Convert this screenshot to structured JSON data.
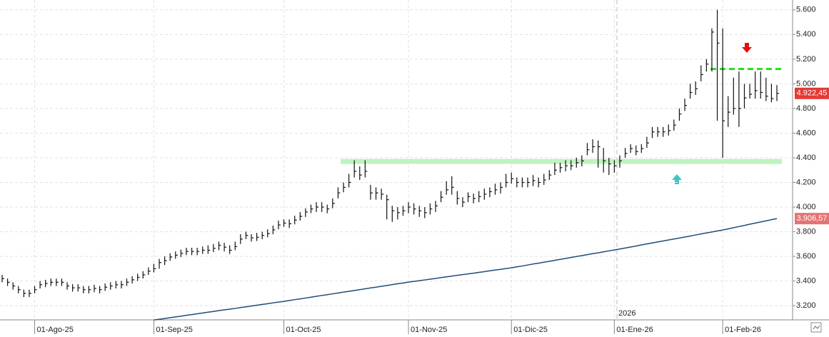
{
  "chart_data": {
    "type": "hlc",
    "categories": [
      null,
      null,
      null,
      null,
      null,
      null,
      "01-Ago-25",
      null,
      null,
      null,
      null,
      null,
      null,
      null,
      null,
      null,
      null,
      null,
      null,
      null,
      null,
      null,
      null,
      null,
      null,
      null,
      null,
      null,
      "01-Sep-25",
      null,
      null,
      null,
      null,
      null,
      null,
      null,
      null,
      null,
      null,
      null,
      null,
      null,
      null,
      null,
      null,
      null,
      null,
      null,
      null,
      null,
      null,
      null,
      "01-Oct-25",
      null,
      null,
      null,
      null,
      null,
      null,
      null,
      null,
      null,
      null,
      null,
      null,
      null,
      null,
      null,
      null,
      null,
      null,
      null,
      null,
      null,
      null,
      "01-Nov-25",
      null,
      null,
      null,
      null,
      null,
      null,
      null,
      null,
      null,
      null,
      null,
      null,
      null,
      null,
      null,
      null,
      null,
      null,
      "01-Dic-25",
      null,
      null,
      null,
      null,
      null,
      null,
      null,
      null,
      null,
      null,
      null,
      null,
      null,
      null,
      null,
      null,
      null,
      null,
      "01-Ene-26",
      null,
      null,
      null,
      null,
      null,
      null,
      null,
      null,
      null,
      null,
      null,
      null,
      null,
      null,
      null,
      null,
      null,
      null,
      null,
      "01-Feb-26",
      null,
      null,
      null,
      null,
      null,
      null,
      null,
      null,
      null,
      null
    ],
    "high": [
      3450,
      3420,
      3390,
      3360,
      3330,
      3330,
      3360,
      3400,
      3410,
      3420,
      3420,
      3420,
      3390,
      3375,
      3375,
      3360,
      3360,
      3370,
      3360,
      3380,
      3390,
      3400,
      3400,
      3420,
      3440,
      3460,
      3480,
      3510,
      3540,
      3580,
      3600,
      3625,
      3640,
      3655,
      3670,
      3670,
      3670,
      3680,
      3690,
      3700,
      3720,
      3710,
      3690,
      3720,
      3780,
      3800,
      3780,
      3790,
      3800,
      3820,
      3850,
      3890,
      3900,
      3900,
      3930,
      3960,
      3990,
      4020,
      4040,
      4040,
      4020,
      4070,
      4160,
      4200,
      4270,
      4380,
      4330,
      4380,
      4180,
      4160,
      4150,
      4100,
      4010,
      4000,
      4010,
      4040,
      4030,
      4010,
      4000,
      4030,
      4050,
      4130,
      4210,
      4250,
      4130,
      4080,
      4120,
      4110,
      4130,
      4150,
      4160,
      4190,
      4200,
      4270,
      4280,
      4240,
      4240,
      4240,
      4260,
      4240,
      4270,
      4300,
      4360,
      4360,
      4380,
      4380,
      4400,
      4420,
      4520,
      4550,
      4540,
      4480,
      4400,
      4380,
      4420,
      4480,
      4510,
      4500,
      4510,
      4570,
      4650,
      4650,
      4650,
      4670,
      4710,
      4800,
      4880,
      5000,
      5020,
      5150,
      5200,
      5450,
      5600,
      5450,
      4900,
      5050,
      5100,
      5000,
      5000,
      5100,
      5100,
      5050,
      5000,
      4990
    ],
    "low": [
      3390,
      3360,
      3330,
      3300,
      3270,
      3270,
      3300,
      3340,
      3350,
      3360,
      3360,
      3360,
      3330,
      3315,
      3315,
      3300,
      3300,
      3310,
      3300,
      3320,
      3330,
      3340,
      3340,
      3360,
      3380,
      3400,
      3420,
      3450,
      3470,
      3500,
      3530,
      3565,
      3580,
      3595,
      3610,
      3610,
      3610,
      3620,
      3620,
      3635,
      3650,
      3640,
      3620,
      3650,
      3700,
      3740,
      3720,
      3725,
      3740,
      3755,
      3780,
      3820,
      3840,
      3830,
      3860,
      3890,
      3920,
      3950,
      3960,
      3960,
      3950,
      3990,
      4070,
      4120,
      4160,
      4240,
      4220,
      4240,
      4060,
      4060,
      4060,
      3900,
      3880,
      3900,
      3930,
      3950,
      3940,
      3920,
      3910,
      3940,
      3960,
      4040,
      4100,
      4100,
      4020,
      4000,
      4040,
      4030,
      4040,
      4060,
      4080,
      4100,
      4110,
      4160,
      4190,
      4160,
      4160,
      4160,
      4170,
      4160,
      4180,
      4220,
      4260,
      4280,
      4290,
      4300,
      4320,
      4330,
      4420,
      4440,
      4320,
      4280,
      4260,
      4280,
      4320,
      4400,
      4440,
      4420,
      4440,
      4480,
      4560,
      4570,
      4570,
      4580,
      4620,
      4700,
      4780,
      4880,
      4910,
      5020,
      5100,
      5100,
      4700,
      4400,
      4650,
      4750,
      4650,
      4800,
      4880,
      4880,
      4880,
      4860,
      4850,
      4860
    ],
    "close": [
      3420,
      3390,
      3360,
      3330,
      3300,
      3300,
      3330,
      3370,
      3380,
      3390,
      3390,
      3390,
      3360,
      3345,
      3345,
      3330,
      3330,
      3340,
      3330,
      3350,
      3360,
      3370,
      3370,
      3390,
      3410,
      3430,
      3450,
      3480,
      3500,
      3550,
      3565,
      3595,
      3610,
      3625,
      3640,
      3640,
      3640,
      3650,
      3650,
      3665,
      3690,
      3675,
      3650,
      3680,
      3740,
      3770,
      3750,
      3755,
      3770,
      3785,
      3815,
      3855,
      3870,
      3865,
      3895,
      3925,
      3960,
      3985,
      4000,
      4000,
      3985,
      4030,
      4115,
      4160,
      4200,
      4290,
      4260,
      4290,
      4115,
      4115,
      4105,
      4060,
      3970,
      3955,
      3970,
      4000,
      3985,
      3970,
      3955,
      3985,
      4010,
      4080,
      4140,
      4160,
      4070,
      4040,
      4085,
      4070,
      4085,
      4105,
      4125,
      4140,
      4160,
      4200,
      4230,
      4200,
      4200,
      4200,
      4215,
      4200,
      4220,
      4260,
      4300,
      4320,
      4335,
      4335,
      4360,
      4375,
      4465,
      4490,
      4490,
      4375,
      4350,
      4335,
      4375,
      4435,
      4475,
      4450,
      4475,
      4520,
      4610,
      4610,
      4610,
      4620,
      4665,
      4755,
      4825,
      4930,
      4960,
      5075,
      5160,
      5420,
      5330,
      4700,
      4770,
      4800,
      4800,
      4885,
      4915,
      4945,
      4930,
      4900,
      4880,
      4922.45
    ],
    "bar_color": "#111111",
    "ma": {
      "color": "#1f4e79",
      "values": [
        null,
        null,
        null,
        null,
        null,
        null,
        null,
        null,
        null,
        null,
        null,
        null,
        null,
        null,
        null,
        null,
        null,
        null,
        null,
        null,
        null,
        null,
        null,
        null,
        null,
        null,
        null,
        null,
        3084,
        3090,
        3096,
        3103,
        3109,
        3115,
        3122,
        3128,
        3134,
        3141,
        3147,
        3153,
        3160,
        3166,
        3172,
        3178,
        3185,
        3191,
        3197,
        3204,
        3210,
        3216,
        3223,
        3229,
        3235,
        3242,
        3249,
        3255,
        3262,
        3269,
        3276,
        3283,
        3289,
        3296,
        3303,
        3310,
        3317,
        3323,
        3330,
        3337,
        3344,
        3350,
        3357,
        3364,
        3371,
        3378,
        3384,
        3391,
        3397,
        3403,
        3409,
        3415,
        3421,
        3428,
        3434,
        3440,
        3446,
        3452,
        3458,
        3464,
        3470,
        3476,
        3483,
        3489,
        3495,
        3501,
        3507,
        3515,
        3522,
        3530,
        3538,
        3545,
        3553,
        3560,
        3568,
        3576,
        3583,
        3591,
        3599,
        3606,
        3614,
        3622,
        3629,
        3637,
        3645,
        3652,
        3660,
        3668,
        3676,
        3684,
        3693,
        3701,
        3709,
        3717,
        3725,
        3733,
        3741,
        3749,
        3757,
        3765,
        3774,
        3782,
        3790,
        3798,
        3806,
        3814,
        3823,
        3833,
        3842,
        3851,
        3861,
        3870,
        3879,
        3888,
        3898,
        3906.57
      ]
    },
    "levels": [
      {
        "value": 4370,
        "color": "#bff2bf"
      },
      {
        "value": 5120,
        "color": "#22dd22"
      }
    ],
    "last_price": {
      "value": 4922.45,
      "label": "4.922,45",
      "color": "#e53935"
    },
    "ma_price": {
      "value": 3906.57,
      "label": "3.906,57",
      "color": "#e57373"
    },
    "year_marker": "2026",
    "ylim": [
      3085,
      5680
    ],
    "yticks": [
      {
        "value": 3200,
        "label": "3.200"
      },
      {
        "value": 3400,
        "label": "3.400"
      },
      {
        "value": 3600,
        "label": "3.600"
      },
      {
        "value": 3800,
        "label": "3.800"
      },
      {
        "value": 4000,
        "label": "4.000"
      },
      {
        "value": 4200,
        "label": "4.200"
      },
      {
        "value": 4400,
        "label": "4.400"
      },
      {
        "value": 4600,
        "label": "4.600"
      },
      {
        "value": 4800,
        "label": "4.800"
      },
      {
        "value": 5000,
        "label": "5.000"
      },
      {
        "value": 5200,
        "label": "5.200"
      },
      {
        "value": 5400,
        "label": "5.400"
      },
      {
        "value": 5600,
        "label": "5.600"
      }
    ],
    "grid": true
  }
}
